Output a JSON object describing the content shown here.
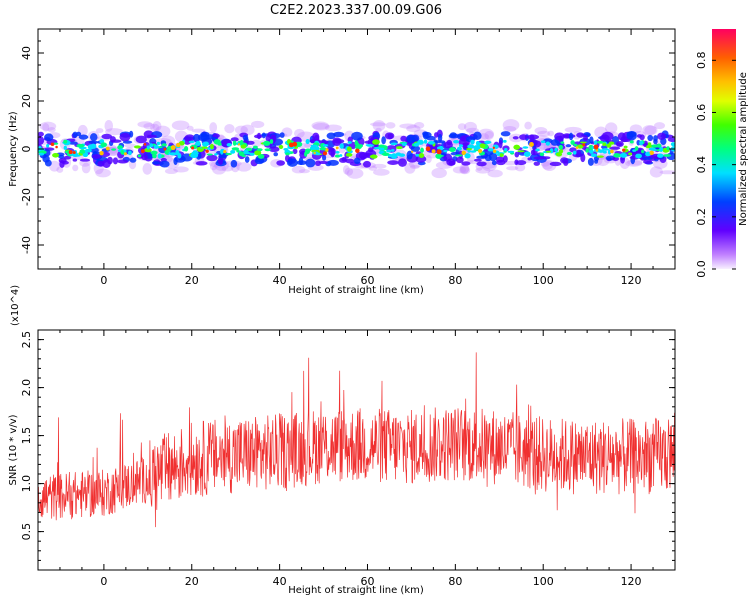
{
  "title": "C2E2.2023.337.00.09.G06",
  "chart_data": [
    {
      "type": "heatmap",
      "name": "spectrogram",
      "xlabel": "Height of straight line (km)",
      "ylabel": "Frequency (Hz)",
      "xlim": [
        -15,
        130
      ],
      "ylim": [
        -50,
        50
      ],
      "x_ticks": [
        0,
        20,
        40,
        60,
        80,
        100,
        120
      ],
      "y_ticks": [
        -40,
        -20,
        0,
        20,
        40
      ],
      "band_center_hz": 0,
      "band_halfwidth_hz": 8,
      "colorbar": {
        "label": "Normalized spectral amplitude",
        "range": [
          0,
          0.92
        ],
        "ticks": [
          0.0,
          0.2,
          0.4,
          0.6,
          0.8
        ],
        "tick_labels": [
          "0.0",
          "0.2",
          "0.4",
          "0.6",
          "0.8"
        ]
      }
    },
    {
      "type": "line",
      "name": "snr",
      "xlabel": "Height of straight line (km)",
      "ylabel": "SNR (10 * v/v)",
      "scale_label": "(x10^4)",
      "xlim": [
        -15,
        130
      ],
      "ylim": [
        0.1,
        2.6
      ],
      "x_ticks": [
        0,
        20,
        40,
        60,
        80,
        100,
        120
      ],
      "y_ticks": [
        0.5,
        1.0,
        1.5,
        2.0,
        2.5
      ],
      "y_tick_labels": [
        "0.5",
        "1.0",
        "1.5",
        "2.0",
        "2.5"
      ],
      "color": "#f03030",
      "trend": {
        "x": [
          -15,
          0,
          10,
          20,
          30,
          40,
          50,
          60,
          70,
          80,
          90,
          100,
          110,
          120,
          130
        ],
        "y": [
          0.85,
          0.9,
          1.05,
          1.25,
          1.3,
          1.33,
          1.4,
          1.4,
          1.38,
          1.42,
          1.38,
          1.3,
          1.28,
          1.28,
          1.3
        ]
      }
    }
  ]
}
